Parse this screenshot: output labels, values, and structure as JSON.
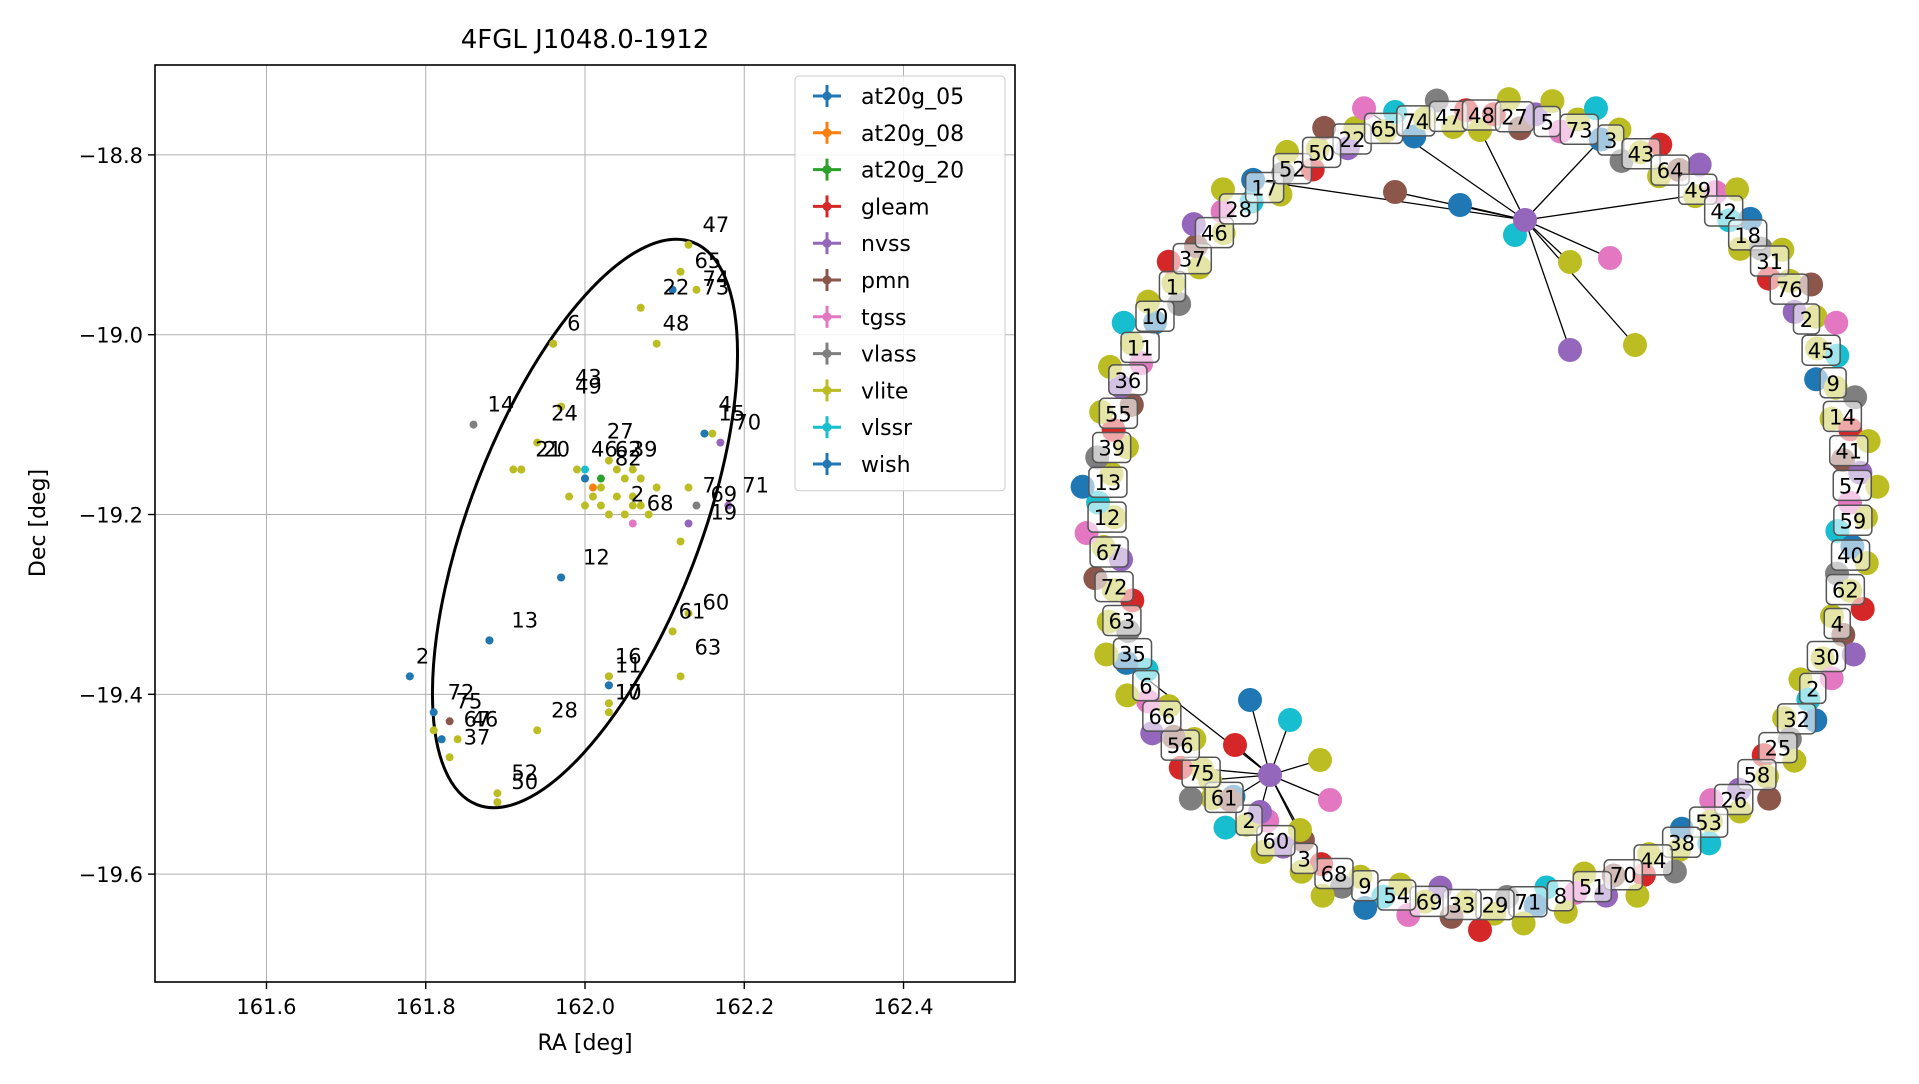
{
  "chart_data": [
    {
      "type": "scatter",
      "title": "4FGL J1048.0-1912",
      "xlabel": "RA [deg]",
      "ylabel": "Dec [deg]",
      "xlim": [
        161.46,
        162.54
      ],
      "ylim": [
        -19.72,
        -18.7
      ],
      "xticks": [
        161.6,
        161.8,
        162.0,
        162.2,
        162.4
      ],
      "yticks": [
        -18.8,
        -19.0,
        -19.2,
        -19.4,
        -19.6
      ],
      "xtick_labels": [
        "161.6",
        "161.8",
        "162.0",
        "162.2",
        "162.4"
      ],
      "ytick_labels": [
        "−18.8",
        "−19.0",
        "−19.2",
        "−19.4",
        "−19.6"
      ],
      "grid": true,
      "legend_position": "top-right",
      "ellipse": {
        "center": [
          162.0,
          -19.21
        ],
        "ra_radius": 0.145,
        "dec_radius": 0.335,
        "rotation_deg": 21
      },
      "series": [
        {
          "name": "at20g_05",
          "color": "#1f77b4",
          "points": [
            [
              162.0,
              -19.16
            ]
          ]
        },
        {
          "name": "at20g_08",
          "color": "#ff7f0e",
          "points": [
            [
              162.01,
              -19.17
            ]
          ]
        },
        {
          "name": "at20g_20",
          "color": "#2ca02c",
          "points": [
            [
              162.02,
              -19.16
            ]
          ]
        },
        {
          "name": "gleam",
          "color": "#d62728",
          "points": [
            [
              161.96,
              -19.01
            ],
            [
              162.03,
              -19.39
            ]
          ]
        },
        {
          "name": "nvss",
          "color": "#9467bd",
          "points": [
            [
              162.17,
              -19.12
            ],
            [
              162.18,
              -19.19
            ],
            [
              162.13,
              -19.21
            ],
            [
              161.92,
              -19.15
            ],
            [
              162.03,
              -19.38
            ]
          ]
        },
        {
          "name": "pmn",
          "color": "#8c564b",
          "points": [
            [
              161.83,
              -19.43
            ]
          ]
        },
        {
          "name": "tgss",
          "color": "#e377c2",
          "points": [
            [
              162.06,
              -19.21
            ],
            [
              161.89,
              -19.52
            ]
          ]
        },
        {
          "name": "vlass",
          "color": "#7f7f7f",
          "points": [
            [
              161.86,
              -19.1
            ],
            [
              162.14,
              -19.19
            ],
            [
              161.97,
              -19.27
            ],
            [
              161.88,
              -19.34
            ]
          ]
        },
        {
          "name": "vlite",
          "color": "#bcbd22",
          "points": [
            [
              162.13,
              -18.9
            ],
            [
              162.12,
              -18.93
            ],
            [
              162.14,
              -18.95
            ],
            [
              162.07,
              -18.97
            ],
            [
              162.09,
              -19.01
            ],
            [
              161.96,
              -19.01
            ],
            [
              161.97,
              -19.08
            ],
            [
              161.94,
              -19.12
            ],
            [
              161.91,
              -19.15
            ],
            [
              161.92,
              -19.15
            ],
            [
              161.99,
              -19.15
            ],
            [
              162.0,
              -19.16
            ],
            [
              162.02,
              -19.17
            ],
            [
              162.01,
              -19.18
            ],
            [
              162.03,
              -19.14
            ],
            [
              162.04,
              -19.15
            ],
            [
              162.05,
              -19.16
            ],
            [
              162.06,
              -19.15
            ],
            [
              162.07,
              -19.16
            ],
            [
              162.04,
              -19.18
            ],
            [
              162.05,
              -19.2
            ],
            [
              162.06,
              -19.19
            ],
            [
              162.07,
              -19.19
            ],
            [
              162.08,
              -19.2
            ],
            [
              162.09,
              -19.17
            ],
            [
              161.98,
              -19.18
            ],
            [
              162.0,
              -19.19
            ],
            [
              162.03,
              -19.2
            ],
            [
              162.06,
              -19.18
            ],
            [
              162.02,
              -19.19
            ],
            [
              162.13,
              -19.17
            ],
            [
              162.15,
              -19.11
            ],
            [
              162.16,
              -19.11
            ],
            [
              162.12,
              -19.23
            ],
            [
              162.13,
              -19.31
            ],
            [
              162.11,
              -19.33
            ],
            [
              162.12,
              -19.38
            ],
            [
              161.97,
              -19.27
            ],
            [
              161.88,
              -19.34
            ],
            [
              162.03,
              -19.38
            ],
            [
              162.03,
              -19.39
            ],
            [
              162.03,
              -19.41
            ],
            [
              162.03,
              -19.42
            ],
            [
              161.78,
              -19.38
            ],
            [
              161.81,
              -19.44
            ],
            [
              161.82,
              -19.45
            ],
            [
              161.84,
              -19.45
            ],
            [
              161.83,
              -19.47
            ],
            [
              161.94,
              -19.44
            ],
            [
              161.89,
              -19.51
            ],
            [
              161.89,
              -19.52
            ]
          ]
        },
        {
          "name": "vlssr",
          "color": "#17becf",
          "points": [
            [
              162.0,
              -19.15
            ]
          ]
        },
        {
          "name": "wish",
          "color": "#1f77b4",
          "points": [
            [
              162.11,
              -18.95
            ],
            [
              162.15,
              -19.11
            ],
            [
              161.97,
              -19.27
            ],
            [
              161.88,
              -19.34
            ],
            [
              162.03,
              -19.39
            ],
            [
              161.81,
              -19.42
            ],
            [
              161.82,
              -19.45
            ],
            [
              161.78,
              -19.38
            ],
            [
              162.0,
              -19.16
            ]
          ]
        }
      ],
      "annotations": [
        {
          "text": "47",
          "x": 162.14,
          "y": -18.89
        },
        {
          "text": "65",
          "x": 162.13,
          "y": -18.93
        },
        {
          "text": "74",
          "x": 162.14,
          "y": -18.95
        },
        {
          "text": "73",
          "x": 162.14,
          "y": -18.96
        },
        {
          "text": "22",
          "x": 162.09,
          "y": -18.96
        },
        {
          "text": "6",
          "x": 161.97,
          "y": -19.0
        },
        {
          "text": "48",
          "x": 162.09,
          "y": -19.0
        },
        {
          "text": "43",
          "x": 161.98,
          "y": -19.06
        },
        {
          "text": "49",
          "x": 161.98,
          "y": -19.07
        },
        {
          "text": "14",
          "x": 161.87,
          "y": -19.09
        },
        {
          "text": "24",
          "x": 161.95,
          "y": -19.1
        },
        {
          "text": "4",
          "x": 162.16,
          "y": -19.09
        },
        {
          "text": "15",
          "x": 162.16,
          "y": -19.1
        },
        {
          "text": "70",
          "x": 162.18,
          "y": -19.11
        },
        {
          "text": "21",
          "x": 161.93,
          "y": -19.14
        },
        {
          "text": "20",
          "x": 161.94,
          "y": -19.14
        },
        {
          "text": "27",
          "x": 162.02,
          "y": -19.12
        },
        {
          "text": "46",
          "x": 162.0,
          "y": -19.14
        },
        {
          "text": "62",
          "x": 162.03,
          "y": -19.14
        },
        {
          "text": "39",
          "x": 162.05,
          "y": -19.14
        },
        {
          "text": "82",
          "x": 162.03,
          "y": -19.15
        },
        {
          "text": "7",
          "x": 162.14,
          "y": -19.18
        },
        {
          "text": "71",
          "x": 162.19,
          "y": -19.18
        },
        {
          "text": "69",
          "x": 162.15,
          "y": -19.19
        },
        {
          "text": "68",
          "x": 162.07,
          "y": -19.2
        },
        {
          "text": "2",
          "x": 162.05,
          "y": -19.19
        },
        {
          "text": "19",
          "x": 162.15,
          "y": -19.21
        },
        {
          "text": "12",
          "x": 161.99,
          "y": -19.26
        },
        {
          "text": "61",
          "x": 162.11,
          "y": -19.32
        },
        {
          "text": "60",
          "x": 162.14,
          "y": -19.31
        },
        {
          "text": "13",
          "x": 161.9,
          "y": -19.33
        },
        {
          "text": "2",
          "x": 161.78,
          "y": -19.37
        },
        {
          "text": "16",
          "x": 162.03,
          "y": -19.37
        },
        {
          "text": "11",
          "x": 162.03,
          "y": -19.38
        },
        {
          "text": "63",
          "x": 162.13,
          "y": -19.36
        },
        {
          "text": "17",
          "x": 162.03,
          "y": -19.41
        },
        {
          "text": "10",
          "x": 162.03,
          "y": -19.41
        },
        {
          "text": "72",
          "x": 161.82,
          "y": -19.41
        },
        {
          "text": "75",
          "x": 161.83,
          "y": -19.42
        },
        {
          "text": "67",
          "x": 161.84,
          "y": -19.44
        },
        {
          "text": "46",
          "x": 161.85,
          "y": -19.44
        },
        {
          "text": "28",
          "x": 161.95,
          "y": -19.43
        },
        {
          "text": "37",
          "x": 161.84,
          "y": -19.46
        },
        {
          "text": "52",
          "x": 161.9,
          "y": -19.5
        },
        {
          "text": "50",
          "x": 161.9,
          "y": -19.51
        }
      ]
    },
    {
      "type": "network",
      "labels": [
        "22",
        "65",
        "74",
        "47",
        "48",
        "27",
        "5",
        "73",
        "3",
        "43",
        "64",
        "49",
        "42",
        "18",
        "31",
        "76",
        "2",
        "45",
        "9",
        "14",
        "41",
        "57",
        "59",
        "40",
        "62",
        "4",
        "30",
        "2",
        "32",
        "25",
        "58",
        "26",
        "53",
        "38",
        "44",
        "70",
        "51",
        "8",
        "71",
        "29",
        "33",
        "69",
        "54",
        "9",
        "68",
        "3",
        "60",
        "2",
        "61",
        "75",
        "56",
        "66",
        "6",
        "35",
        "63",
        "72",
        "67",
        "12",
        "13",
        "39",
        "55",
        "36",
        "11",
        "10",
        "1",
        "37",
        "46",
        "28",
        "17",
        "52",
        "50"
      ]
    }
  ]
}
